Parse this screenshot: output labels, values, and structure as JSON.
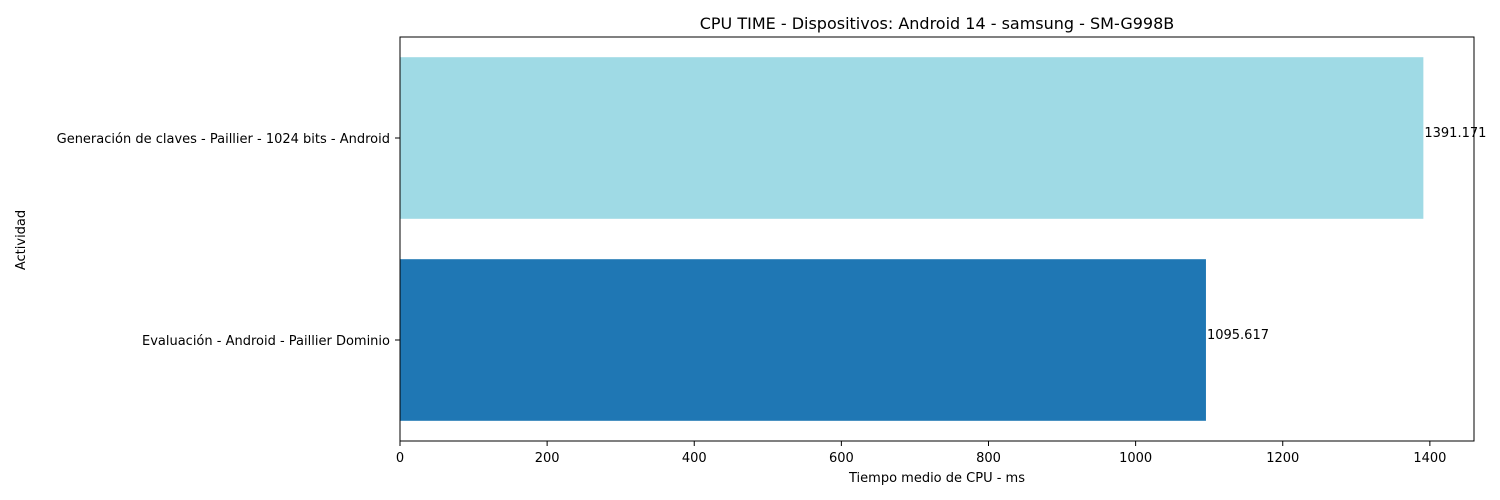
{
  "chart_data": {
    "type": "bar",
    "orientation": "horizontal",
    "title": "CPU TIME - Dispositivos: Android 14 - samsung - SM-G998B",
    "xlabel": "Tiempo medio de CPU - ms",
    "ylabel": "Actividad",
    "xlim": [
      0,
      1460
    ],
    "xticks": [
      0,
      200,
      400,
      600,
      800,
      1000,
      1200,
      1400
    ],
    "categories": [
      "Generación de claves - Paillier - 1024 bits - Android",
      "Evaluación - Android - Paillier Dominio"
    ],
    "values": [
      1391.171,
      1095.617
    ],
    "value_labels": [
      "1391.171",
      "1095.617"
    ],
    "colors": [
      "#9fdae5",
      "#1f77b4"
    ],
    "grid": false,
    "legend": "none"
  }
}
